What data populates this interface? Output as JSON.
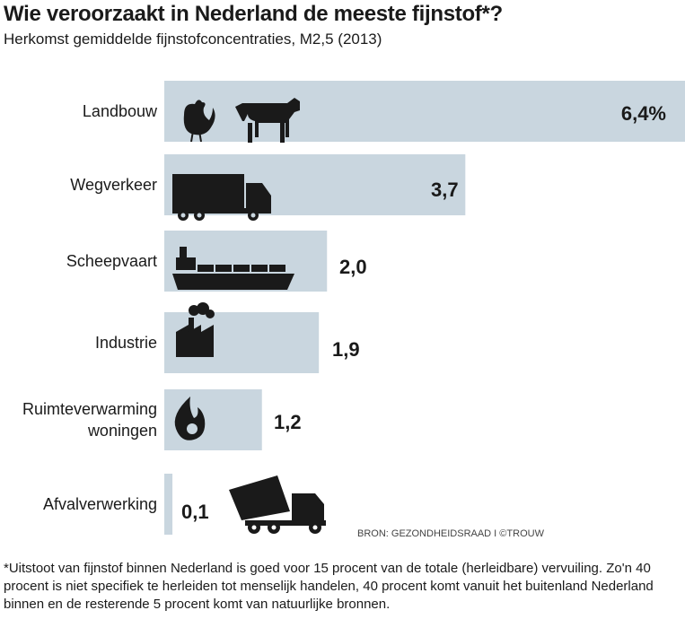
{
  "title": "Wie veroorzaakt in Nederland de meeste fijnstof*?",
  "subtitle": "Herkomst gemiddelde fijnstofconcentraties, M2,5 (2013)",
  "source": "BRON: GEZONDHEIDSRAAD I ©TROUW",
  "footnote": "*Uitstoot van fijnstof binnen Nederland is goed voor 15 procent van de totale (herleidbare) vervuiling. Zo'n 40 procent is niet specifiek te herleiden tot menselijk handelen, 40 procent komt vanuit het buitenland Nederland binnen en de resterende 5 procent komt van natuurlijke bronnen.",
  "colors": {
    "bar": "#c9d6df",
    "icon": "#1a1a1a"
  },
  "chart_data": {
    "type": "bar",
    "orientation": "horizontal",
    "title": "Wie veroorzaakt in Nederland de meeste fijnstof*?",
    "categories": [
      "Landbouw",
      "Wegverkeer",
      "Scheepvaart",
      "Industrie",
      "Ruimteverwarming woningen",
      "Afvalverwerking"
    ],
    "category_lines": [
      [
        "Landbouw"
      ],
      [
        "Wegverkeer"
      ],
      [
        "Scheepvaart"
      ],
      [
        "Industrie"
      ],
      [
        "Ruimteverwarming",
        "woningen"
      ],
      [
        "Afvalverwerking"
      ]
    ],
    "values": [
      6.4,
      3.7,
      2.0,
      1.9,
      1.2,
      0.1
    ],
    "value_labels": [
      "6,4%",
      "3,7",
      "2,0",
      "1,9",
      "1,2",
      "0,1"
    ],
    "icons": [
      [
        "chicken-icon",
        "cow-icon"
      ],
      [
        "truck-icon"
      ],
      [
        "ship-icon"
      ],
      [
        "factory-icon"
      ],
      [
        "flame-icon"
      ],
      [
        "dump-truck-icon"
      ]
    ],
    "xlim": [
      0,
      6.4
    ],
    "grid": false
  }
}
